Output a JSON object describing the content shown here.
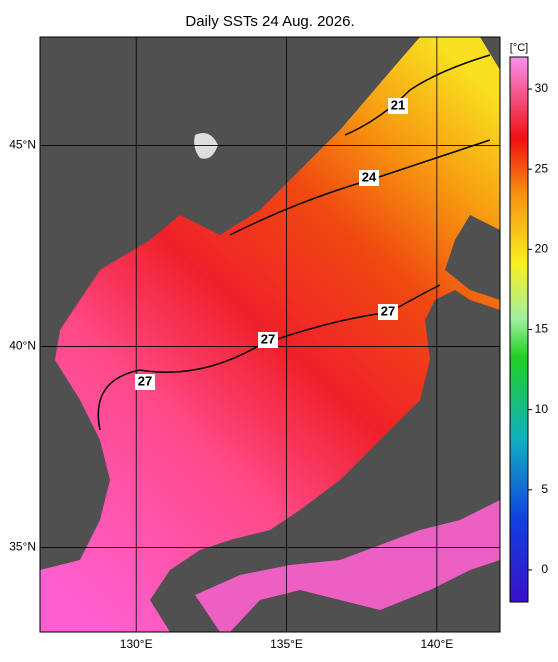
{
  "title": "Daily SSTs 24 Aug. 2026.",
  "map": {
    "xlim": [
      126.8,
      142.1
    ],
    "ylim": [
      32.9,
      47.7
    ],
    "xticks": [
      {
        "value": 130,
        "label": "130°E"
      },
      {
        "value": 135,
        "label": "135°E"
      },
      {
        "value": 140,
        "label": "140°E"
      }
    ],
    "yticks": [
      {
        "value": 35,
        "label": "35°N"
      },
      {
        "value": 40,
        "label": "40°N"
      },
      {
        "value": 45,
        "label": "45°N"
      }
    ],
    "contour_labels": [
      21,
      24,
      27,
      27,
      27
    ]
  },
  "colorbar": {
    "label": "[°C]",
    "lim": [
      -2,
      32
    ],
    "ticks": [
      0,
      5,
      10,
      15,
      20,
      25,
      30
    ]
  }
}
